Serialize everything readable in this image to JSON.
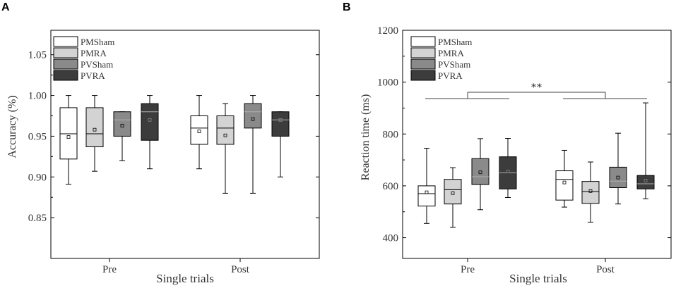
{
  "chart_data": [
    {
      "type": "box",
      "panel_label": "A",
      "xlabel": "Single trials",
      "ylabel": "Accuracy (%)",
      "ylim": [
        0.8,
        1.08
      ],
      "yticks": [
        0.85,
        0.9,
        0.95,
        1.0,
        1.05
      ],
      "ytick_labels": [
        "0.85",
        "0.90",
        "0.95",
        "1.00",
        "1.05"
      ],
      "categories": [
        "Pre",
        "Post"
      ],
      "legend": {
        "position": "top-left",
        "entries": [
          "PMSham",
          "PMRA",
          "PVSham",
          "PVRA"
        ]
      },
      "series": [
        {
          "name": "PMSham",
          "color": "#ffffff",
          "stats": [
            {
              "min": 0.891,
              "q1": 0.922,
              "median": 0.953,
              "q3": 0.985,
              "max": 1.0,
              "mean": 0.949
            },
            {
              "min": 0.91,
              "q1": 0.94,
              "median": 0.96,
              "q3": 0.975,
              "max": 1.0,
              "mean": 0.956
            }
          ]
        },
        {
          "name": "PMRA",
          "color": "#d3d3d3",
          "stats": [
            {
              "min": 0.907,
              "q1": 0.937,
              "median": 0.953,
              "q3": 0.985,
              "max": 1.0,
              "mean": 0.958
            },
            {
              "min": 0.88,
              "q1": 0.94,
              "median": 0.96,
              "q3": 0.975,
              "max": 0.99,
              "mean": 0.951
            }
          ]
        },
        {
          "name": "PVSham",
          "color": "#8a8a8a",
          "stats": [
            {
              "min": 0.92,
              "q1": 0.95,
              "median": 0.97,
              "q3": 0.98,
              "max": 0.98,
              "mean": 0.963
            },
            {
              "min": 0.88,
              "q1": 0.96,
              "median": 0.98,
              "q3": 0.99,
              "max": 1.0,
              "mean": 0.971
            }
          ]
        },
        {
          "name": "PVRA",
          "color": "#3c3c3c",
          "stats": [
            {
              "min": 0.91,
              "q1": 0.945,
              "median": 0.98,
              "q3": 0.99,
              "max": 1.0,
              "mean": 0.97
            },
            {
              "min": 0.9,
              "q1": 0.95,
              "median": 0.97,
              "q3": 0.98,
              "max": 0.98,
              "mean": 0.97
            }
          ]
        }
      ]
    },
    {
      "type": "box",
      "panel_label": "B",
      "xlabel": "Single trials",
      "ylabel": "Reaction time (ms)",
      "ylim": [
        320,
        1200
      ],
      "yticks": [
        400,
        600,
        800,
        1000,
        1200
      ],
      "ytick_labels": [
        "400",
        "600",
        "800",
        "1000",
        "1200"
      ],
      "categories": [
        "Pre",
        "Post"
      ],
      "legend": {
        "position": "top-left",
        "entries": [
          "PMSham",
          "PMRA",
          "PVSham",
          "PVRA"
        ]
      },
      "significance": {
        "label": "**",
        "between": [
          "Pre",
          "Post"
        ]
      },
      "series": [
        {
          "name": "PMSham",
          "color": "#ffffff",
          "stats": [
            {
              "min": 455,
              "q1": 522,
              "median": 570,
              "q3": 600,
              "max": 745,
              "mean": 575
            },
            {
              "min": 518,
              "q1": 545,
              "median": 625,
              "q3": 658,
              "max": 737,
              "mean": 613
            }
          ]
        },
        {
          "name": "PMRA",
          "color": "#d3d3d3",
          "stats": [
            {
              "min": 440,
              "q1": 530,
              "median": 585,
              "q3": 625,
              "max": 670,
              "mean": 572
            },
            {
              "min": 460,
              "q1": 532,
              "median": 578,
              "q3": 617,
              "max": 692,
              "mean": 580
            }
          ]
        },
        {
          "name": "PVSham",
          "color": "#8a8a8a",
          "stats": [
            {
              "min": 508,
              "q1": 605,
              "median": 635,
              "q3": 705,
              "max": 782,
              "mean": 652
            },
            {
              "min": 530,
              "q1": 593,
              "median": 618,
              "q3": 672,
              "max": 803,
              "mean": 632
            }
          ]
        },
        {
          "name": "PVRA",
          "color": "#3c3c3c",
          "stats": [
            {
              "min": 555,
              "q1": 588,
              "median": 650,
              "q3": 712,
              "max": 783,
              "mean": 655
            },
            {
              "min": 550,
              "q1": 588,
              "median": 608,
              "q3": 640,
              "max": 920,
              "mean": 620
            }
          ]
        }
      ]
    }
  ]
}
